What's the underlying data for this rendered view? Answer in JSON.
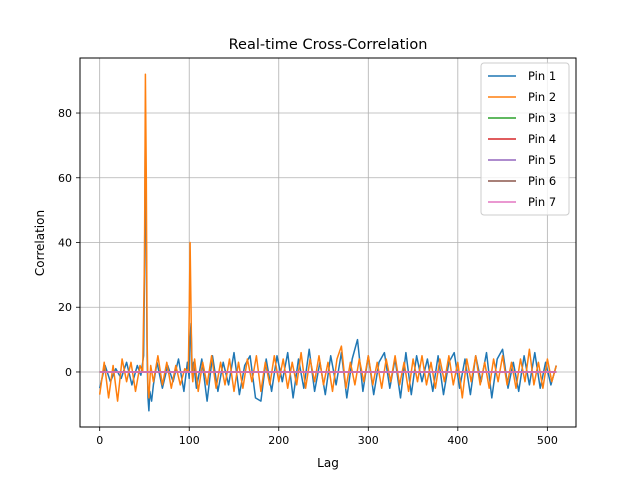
{
  "chart_data": {
    "type": "line",
    "title": "Real-time Cross-Correlation",
    "xlabel": "Lag",
    "ylabel": "Correlation",
    "xlim": [
      -22,
      532
    ],
    "ylim": [
      -17,
      97
    ],
    "xticks": [
      0,
      100,
      200,
      300,
      400,
      500
    ],
    "yticks": [
      0,
      20,
      40,
      60,
      80
    ],
    "grid": true,
    "legend_position": "top-right",
    "x_range": [
      0,
      510
    ],
    "series": [
      {
        "name": "Pin 1",
        "color": "#1f77b4",
        "x": [
          0,
          6,
          12,
          18,
          24,
          30,
          36,
          42,
          46,
          49,
          50,
          51,
          52,
          53,
          54,
          55,
          56,
          58,
          60,
          64,
          70,
          76,
          82,
          88,
          94,
          98,
          100,
          101,
          102,
          103,
          104,
          105,
          108,
          114,
          120,
          126,
          132,
          138,
          144,
          150,
          156,
          162,
          168,
          174,
          180,
          186,
          192,
          198,
          204,
          210,
          216,
          222,
          228,
          234,
          240,
          246,
          252,
          258,
          264,
          270,
          276,
          282,
          288,
          294,
          300,
          306,
          312,
          318,
          324,
          330,
          336,
          342,
          348,
          354,
          360,
          366,
          372,
          378,
          384,
          390,
          396,
          402,
          408,
          414,
          420,
          426,
          432,
          438,
          444,
          450,
          456,
          462,
          468,
          474,
          480,
          486,
          492,
          498,
          504,
          510
        ],
        "values": [
          -5,
          2,
          -3,
          1,
          -2,
          3,
          -4,
          2,
          -1,
          5,
          30,
          77,
          40,
          5,
          -8,
          -12,
          -6,
          -9,
          -4,
          3,
          -5,
          2,
          -3,
          4,
          -6,
          3,
          -2,
          10,
          15,
          4,
          -2,
          3,
          -5,
          4,
          -9,
          5,
          -6,
          3,
          -4,
          6,
          -7,
          2,
          5,
          -8,
          -9,
          4,
          -6,
          5,
          -3,
          6,
          -8,
          4,
          -5,
          7,
          -6,
          3,
          -7,
          5,
          -4,
          6,
          -8,
          4,
          10,
          -6,
          5,
          -7,
          3,
          6,
          -5,
          4,
          -8,
          6,
          -7,
          5,
          -3,
          4,
          -6,
          5,
          -7,
          3,
          6,
          -5,
          4,
          -7,
          5,
          -3,
          6,
          -8,
          4,
          7,
          -5,
          3,
          -6,
          5,
          -4,
          6,
          -5,
          3,
          -4,
          2
        ]
      },
      {
        "name": "Pin 2",
        "color": "#ff7f0e",
        "x": [
          0,
          5,
          10,
          15,
          20,
          25,
          30,
          35,
          40,
          45,
          48,
          50,
          51,
          52,
          53,
          54,
          55,
          57,
          60,
          65,
          70,
          75,
          80,
          85,
          90,
          95,
          99,
          100,
          101,
          102,
          103,
          104,
          106,
          110,
          115,
          120,
          125,
          130,
          135,
          140,
          145,
          150,
          155,
          160,
          165,
          170,
          175,
          180,
          185,
          190,
          195,
          200,
          205,
          210,
          215,
          220,
          225,
          230,
          235,
          240,
          245,
          250,
          255,
          260,
          265,
          270,
          275,
          280,
          285,
          290,
          295,
          300,
          305,
          310,
          315,
          320,
          325,
          330,
          335,
          340,
          345,
          350,
          355,
          360,
          365,
          370,
          375,
          380,
          385,
          390,
          395,
          400,
          405,
          410,
          415,
          420,
          425,
          430,
          435,
          440,
          445,
          450,
          455,
          460,
          465,
          470,
          475,
          480,
          485,
          490,
          495,
          500,
          505,
          510
        ],
        "values": [
          -7,
          3,
          -8,
          2,
          -9,
          4,
          -3,
          3,
          -6,
          2,
          0,
          35,
          92,
          60,
          10,
          -5,
          -8,
          2,
          -3,
          5,
          -4,
          3,
          -5,
          2,
          -4,
          1,
          0,
          18,
          40,
          20,
          0,
          -3,
          4,
          -6,
          3,
          -4,
          5,
          -5,
          3,
          -4,
          4,
          -6,
          3,
          -5,
          4,
          -3,
          5,
          -6,
          3,
          -4,
          5,
          -3,
          4,
          -5,
          3,
          -4,
          6,
          -5,
          4,
          -3,
          5,
          -4,
          3,
          -6,
          4,
          8,
          -5,
          3,
          -4,
          4,
          -3,
          5,
          -4,
          3,
          -5,
          4,
          -3,
          5,
          -4,
          3,
          -6,
          4,
          -3,
          5,
          -4,
          3,
          -5,
          4,
          -3,
          5,
          -4,
          3,
          -8,
          4,
          -3,
          5,
          -4,
          3,
          -5,
          4,
          -3,
          5,
          -4,
          3,
          -5,
          4,
          -3,
          7,
          -4,
          3,
          -5,
          4,
          -3,
          2
        ]
      },
      {
        "name": "Pin 3",
        "color": "#2ca02c",
        "x": [
          0,
          510
        ],
        "values": [
          0,
          0
        ]
      },
      {
        "name": "Pin 4",
        "color": "#d62728",
        "x": [
          0,
          510
        ],
        "values": [
          0,
          0
        ]
      },
      {
        "name": "Pin 5",
        "color": "#9467bd",
        "x": [
          0,
          510
        ],
        "values": [
          0,
          0
        ]
      },
      {
        "name": "Pin 6",
        "color": "#8c564b",
        "x": [
          0,
          510
        ],
        "values": [
          0,
          0
        ]
      },
      {
        "name": "Pin 7",
        "color": "#e377c2",
        "x": [
          0,
          510
        ],
        "values": [
          0,
          0
        ]
      }
    ]
  }
}
